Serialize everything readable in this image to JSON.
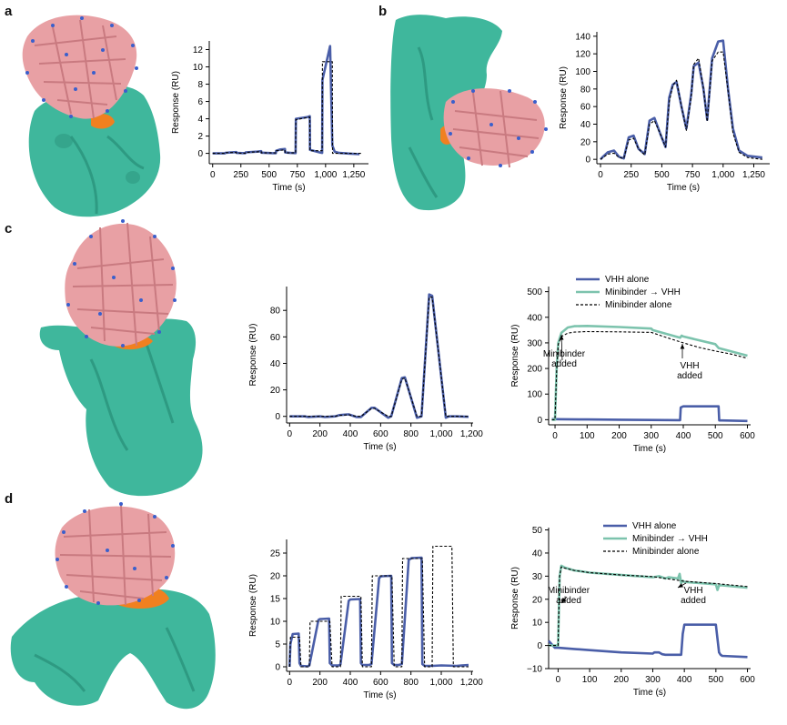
{
  "panel_labels": [
    "a",
    "b",
    "c",
    "d"
  ],
  "colors": {
    "surface": "#3fb79c",
    "surface_dark": "#2e9a82",
    "binder": "#e8a0a4",
    "binder_dark": "#c97a80",
    "epitope": "#f08020",
    "stick_blue": "#3a5fcc",
    "vhh": "#4a5ea8",
    "minibinder_vhh": "#7cc3ad",
    "fit": "#000000"
  },
  "chart_data": [
    {
      "id": "a",
      "type": "line",
      "xlabel": "Time (s)",
      "ylabel": "Response (RU)",
      "xlim": [
        -30,
        1380
      ],
      "ylim": [
        -1.2,
        13
      ],
      "xticks": [
        0,
        250,
        500,
        750,
        1000,
        1250
      ],
      "xticklabels": [
        "0",
        "250",
        "500",
        "750",
        "1,000",
        "1,250"
      ],
      "yticks": [
        0,
        2,
        4,
        6,
        8,
        10,
        12
      ],
      "yticklabels": [
        "0",
        "2",
        "4",
        "6",
        "8",
        "10",
        "12"
      ],
      "series": [
        {
          "name": "measured",
          "style": "solid",
          "color": "#4a5ea8",
          "x": [
            0,
            110,
            112,
            160,
            210,
            212,
            260,
            290,
            292,
            395,
            430,
            432,
            520,
            560,
            562,
            600,
            640,
            642,
            690,
            735,
            737,
            840,
            860,
            862,
            950,
            970,
            972,
            1040,
            1060,
            1080,
            1120,
            1180,
            1300
          ],
          "y": [
            0,
            0,
            0.06,
            0.1,
            0.15,
            0.05,
            0.03,
            0.02,
            0.12,
            0.2,
            0.25,
            0.08,
            0.03,
            0.02,
            0.3,
            0.45,
            0.5,
            0.1,
            0.05,
            0.03,
            4.0,
            4.2,
            4.3,
            0.4,
            0.1,
            0.05,
            8.5,
            12.4,
            0.9,
            0.2,
            0.05,
            0,
            -0.1
          ]
        },
        {
          "name": "fit",
          "style": "dashed",
          "color": "#000000",
          "x": [
            0,
            110,
            112,
            210,
            212,
            290,
            292,
            430,
            432,
            560,
            562,
            640,
            642,
            735,
            737,
            860,
            862,
            970,
            972,
            1060,
            1062,
            1320
          ],
          "y": [
            0,
            0,
            0.08,
            0.1,
            0.02,
            0.02,
            0.12,
            0.2,
            0.05,
            0.05,
            0.3,
            0.4,
            0.05,
            0.05,
            3.9,
            4.2,
            0.3,
            0.3,
            10.6,
            10.6,
            0,
            0
          ]
        }
      ]
    },
    {
      "id": "b",
      "type": "line",
      "xlabel": "Time (s)",
      "ylabel": "Response (RU)",
      "xlim": [
        -30,
        1380
      ],
      "ylim": [
        -5,
        145
      ],
      "xticks": [
        0,
        250,
        500,
        750,
        1000,
        1250
      ],
      "xticklabels": [
        "0",
        "250",
        "500",
        "750",
        "1,000",
        "1,250"
      ],
      "yticks": [
        0,
        20,
        40,
        60,
        80,
        100,
        120,
        140
      ],
      "yticklabels": [
        "0",
        "20",
        "40",
        "60",
        "80",
        "100",
        "120",
        "140"
      ],
      "series": [
        {
          "name": "measured",
          "style": "solid",
          "color": "#4a5ea8",
          "x": [
            0,
            20,
            60,
            110,
            150,
            190,
            230,
            270,
            310,
            360,
            400,
            440,
            490,
            530,
            560,
            590,
            620,
            660,
            700,
            740,
            760,
            800,
            840,
            870,
            910,
            960,
            1000,
            1040,
            1080,
            1130,
            1200,
            1320
          ],
          "y": [
            0,
            3,
            8,
            10,
            3,
            1,
            25,
            27,
            12,
            6,
            44,
            47,
            28,
            14,
            70,
            85,
            88,
            60,
            35,
            75,
            106,
            110,
            80,
            45,
            115,
            134,
            135,
            80,
            35,
            10,
            4,
            2
          ]
        },
        {
          "name": "fit",
          "style": "dashed",
          "color": "#000000",
          "x": [
            0,
            20,
            60,
            110,
            150,
            190,
            230,
            270,
            310,
            360,
            400,
            440,
            490,
            530,
            560,
            590,
            620,
            660,
            700,
            740,
            760,
            800,
            840,
            870,
            910,
            960,
            1000,
            1040,
            1080,
            1130,
            1200,
            1320
          ],
          "y": [
            0,
            2,
            6,
            7,
            2,
            1,
            22,
            24,
            12,
            5,
            40,
            44,
            28,
            14,
            65,
            84,
            90,
            60,
            33,
            72,
            108,
            115,
            80,
            43,
            112,
            122,
            122,
            78,
            30,
            8,
            2,
            0
          ]
        }
      ]
    },
    {
      "id": "c1",
      "type": "line",
      "xlabel": "Time (s)",
      "ylabel": "Response (RU)",
      "xlim": [
        -20,
        1210
      ],
      "ylim": [
        -5,
        98
      ],
      "xticks": [
        0,
        200,
        400,
        600,
        800,
        1000,
        1200
      ],
      "xticklabels": [
        "0",
        "200",
        "400",
        "600",
        "800",
        "1,000",
        "1,200"
      ],
      "yticks": [
        0,
        20,
        40,
        60,
        80
      ],
      "yticklabels": [
        "0",
        "20",
        "40",
        "60",
        "80"
      ],
      "series": [
        {
          "name": "measured",
          "style": "solid",
          "color": "#4a5ea8",
          "x": [
            0,
            100,
            120,
            200,
            230,
            300,
            330,
            390,
            440,
            470,
            540,
            560,
            650,
            670,
            740,
            760,
            840,
            870,
            920,
            940,
            1030,
            1050,
            1100,
            1180
          ],
          "y": [
            0,
            0,
            -0.5,
            0,
            -0.5,
            0,
            1,
            1.5,
            -0.5,
            -0.5,
            6.5,
            6.5,
            -1,
            0,
            29,
            29.5,
            -1,
            0,
            92,
            91,
            -1,
            0,
            0,
            -0.3
          ]
        },
        {
          "name": "fit",
          "style": "dashed",
          "color": "#000000",
          "x": [
            0,
            100,
            120,
            200,
            230,
            300,
            330,
            390,
            440,
            470,
            540,
            560,
            650,
            670,
            740,
            760,
            840,
            870,
            920,
            940,
            1030,
            1050,
            1100,
            1180
          ],
          "y": [
            0,
            0,
            0,
            0,
            0,
            0,
            0.8,
            1.2,
            0,
            0,
            6,
            6,
            0,
            0,
            28,
            29,
            0,
            0,
            90,
            90,
            0,
            0,
            0,
            0
          ]
        }
      ]
    },
    {
      "id": "c2",
      "type": "line",
      "xlabel": "Time (s)",
      "ylabel": "Response (RU)",
      "xlim": [
        -20,
        610
      ],
      "ylim": [
        -20,
        520
      ],
      "xticks": [
        0,
        100,
        200,
        300,
        400,
        500,
        600
      ],
      "xticklabels": [
        "0",
        "100",
        "200",
        "300",
        "400",
        "500",
        "600"
      ],
      "yticks": [
        0,
        100,
        200,
        300,
        400,
        500
      ],
      "yticklabels": [
        "0",
        "100",
        "200",
        "300",
        "400",
        "500"
      ],
      "legend": [
        "VHH alone",
        "Minibinder → VHH",
        "Minibinder alone"
      ],
      "annotations": [
        {
          "lines": [
            "Minibinder",
            "added"
          ]
        },
        {
          "lines": [
            "VHH",
            "added"
          ]
        }
      ],
      "series": [
        {
          "name": "VHH alone",
          "style": "solid",
          "color": "#4a5ea8",
          "x": [
            -10,
            0,
            100,
            200,
            300,
            390,
            392,
            400,
            500,
            510,
            512,
            520,
            600
          ],
          "y": [
            2,
            2,
            1,
            0,
            -1,
            -2,
            48,
            52,
            52,
            52,
            -3,
            -3,
            -5
          ]
        },
        {
          "name": "Minibinder → VHH",
          "style": "solid",
          "color": "#7cc3ad",
          "x": [
            -10,
            0,
            5,
            10,
            20,
            40,
            60,
            100,
            200,
            300,
            305,
            390,
            395,
            400,
            500,
            510,
            600
          ],
          "y": [
            0,
            0,
            200,
            300,
            340,
            360,
            365,
            366,
            362,
            356,
            350,
            320,
            328,
            325,
            295,
            280,
            250
          ]
        },
        {
          "name": "Minibinder alone",
          "style": "dashed",
          "color": "#000000",
          "x": [
            -10,
            0,
            5,
            10,
            20,
            40,
            60,
            100,
            200,
            300,
            350,
            400,
            450,
            500,
            550,
            600
          ],
          "y": [
            0,
            0,
            190,
            295,
            325,
            338,
            342,
            344,
            343,
            341,
            320,
            300,
            282,
            268,
            256,
            240
          ]
        }
      ]
    },
    {
      "id": "d1",
      "type": "line",
      "xlabel": "Time (s)",
      "ylabel": "Response (RU)",
      "xlim": [
        -20,
        1210
      ],
      "ylim": [
        -1,
        28
      ],
      "xticks": [
        0,
        200,
        400,
        600,
        800,
        1000,
        1200
      ],
      "xticklabels": [
        "0",
        "200",
        "400",
        "600",
        "800",
        "1,000",
        "1,200"
      ],
      "yticks": [
        0,
        5,
        10,
        15,
        20,
        25
      ],
      "yticklabels": [
        "0",
        "5",
        "10",
        "15",
        "20",
        "25"
      ],
      "series": [
        {
          "name": "measured",
          "style": "solid",
          "color": "#4a5ea8",
          "x": [
            0,
            5,
            20,
            60,
            65,
            75,
            120,
            130,
            190,
            200,
            205,
            260,
            265,
            280,
            325,
            335,
            390,
            400,
            405,
            465,
            470,
            480,
            525,
            540,
            590,
            600,
            605,
            670,
            675,
            690,
            720,
            740,
            785,
            800,
            805,
            870,
            875,
            890,
            940,
            1000,
            1100,
            1180
          ],
          "y": [
            0,
            5,
            7.2,
            7.3,
            0.8,
            0.2,
            0.1,
            0.3,
            10.3,
            10.5,
            10.5,
            10.6,
            0.8,
            0.3,
            0.3,
            0.5,
            14.5,
            14.8,
            14.8,
            14.9,
            0.8,
            0.4,
            0.4,
            0.6,
            19.5,
            19.8,
            19.9,
            20,
            0.8,
            0.4,
            0.4,
            0.6,
            23.5,
            23.8,
            23.9,
            24,
            0.6,
            0.2,
            0.2,
            0.3,
            0.2,
            0.4
          ]
        },
        {
          "name": "fit",
          "style": "dashed",
          "color": "#000000",
          "x": [
            0,
            5,
            65,
            75,
            130,
            135,
            200,
            265,
            280,
            335,
            340,
            400,
            470,
            480,
            540,
            545,
            600,
            675,
            690,
            740,
            745,
            800,
            875,
            890,
            940,
            945,
            1000,
            1070,
            1080,
            1180
          ],
          "y": [
            0,
            6.5,
            6.5,
            0,
            0,
            10,
            10,
            10,
            0,
            0,
            15.5,
            15.5,
            15.5,
            0,
            0,
            20,
            20,
            20,
            0,
            0,
            23.8,
            23.8,
            23.8,
            0,
            0,
            26.5,
            26.5,
            26.5,
            0,
            0
          ]
        }
      ]
    },
    {
      "id": "d2",
      "type": "line",
      "xlabel": "Time (s)",
      "ylabel": "Response (RU)",
      "xlim": [
        -30,
        610
      ],
      "ylim": [
        -10,
        51
      ],
      "xticks": [
        0,
        100,
        200,
        300,
        400,
        500,
        600
      ],
      "xticklabels": [
        "0",
        "100",
        "200",
        "300",
        "400",
        "500",
        "600"
      ],
      "yticks": [
        -10,
        0,
        10,
        20,
        30,
        40,
        50
      ],
      "yticklabels": [
        "−10",
        "0",
        "10",
        "20",
        "30",
        "40",
        "50"
      ],
      "legend": [
        "VHH alone",
        "Minibinder → VHH",
        "Minibinder alone"
      ],
      "annotations": [
        {
          "lines": [
            "Minibinder",
            "added"
          ]
        },
        {
          "lines": [
            "VHH",
            "added"
          ]
        }
      ],
      "series": [
        {
          "name": "VHH alone",
          "style": "solid",
          "color": "#4a5ea8",
          "x": [
            -30,
            -10,
            0,
            50,
            100,
            200,
            300,
            305,
            310,
            320,
            330,
            340,
            390,
            395,
            400,
            500,
            510,
            515,
            520,
            600
          ],
          "y": [
            2,
            -1,
            -1,
            -1.5,
            -2,
            -3,
            -3.5,
            -3,
            -3,
            -3,
            -3.8,
            -4,
            -4,
            5,
            9,
            9,
            -3,
            -4,
            -4.5,
            -5
          ]
        },
        {
          "name": "Minibinder → VHH",
          "style": "solid",
          "color": "#7cc3ad",
          "x": [
            -30,
            -10,
            0,
            5,
            10,
            20,
            50,
            100,
            200,
            300,
            320,
            340,
            350,
            380,
            385,
            390,
            395,
            400,
            500,
            505,
            510,
            520,
            600
          ],
          "y": [
            0,
            0,
            0,
            30,
            34.5,
            33.8,
            32.5,
            31.5,
            30.5,
            29.5,
            30,
            29,
            29.5,
            29,
            31,
            27,
            28,
            27.5,
            26.5,
            24,
            26,
            26,
            25
          ]
        },
        {
          "name": "Minibinder alone",
          "style": "dashed",
          "color": "#000000",
          "x": [
            -30,
            -10,
            0,
            5,
            10,
            20,
            50,
            100,
            200,
            300,
            400,
            500,
            600
          ],
          "y": [
            0,
            0,
            0,
            30,
            34,
            33.5,
            32.5,
            31.5,
            30.5,
            29.8,
            27.8,
            26.8,
            25.5
          ]
        }
      ]
    }
  ]
}
